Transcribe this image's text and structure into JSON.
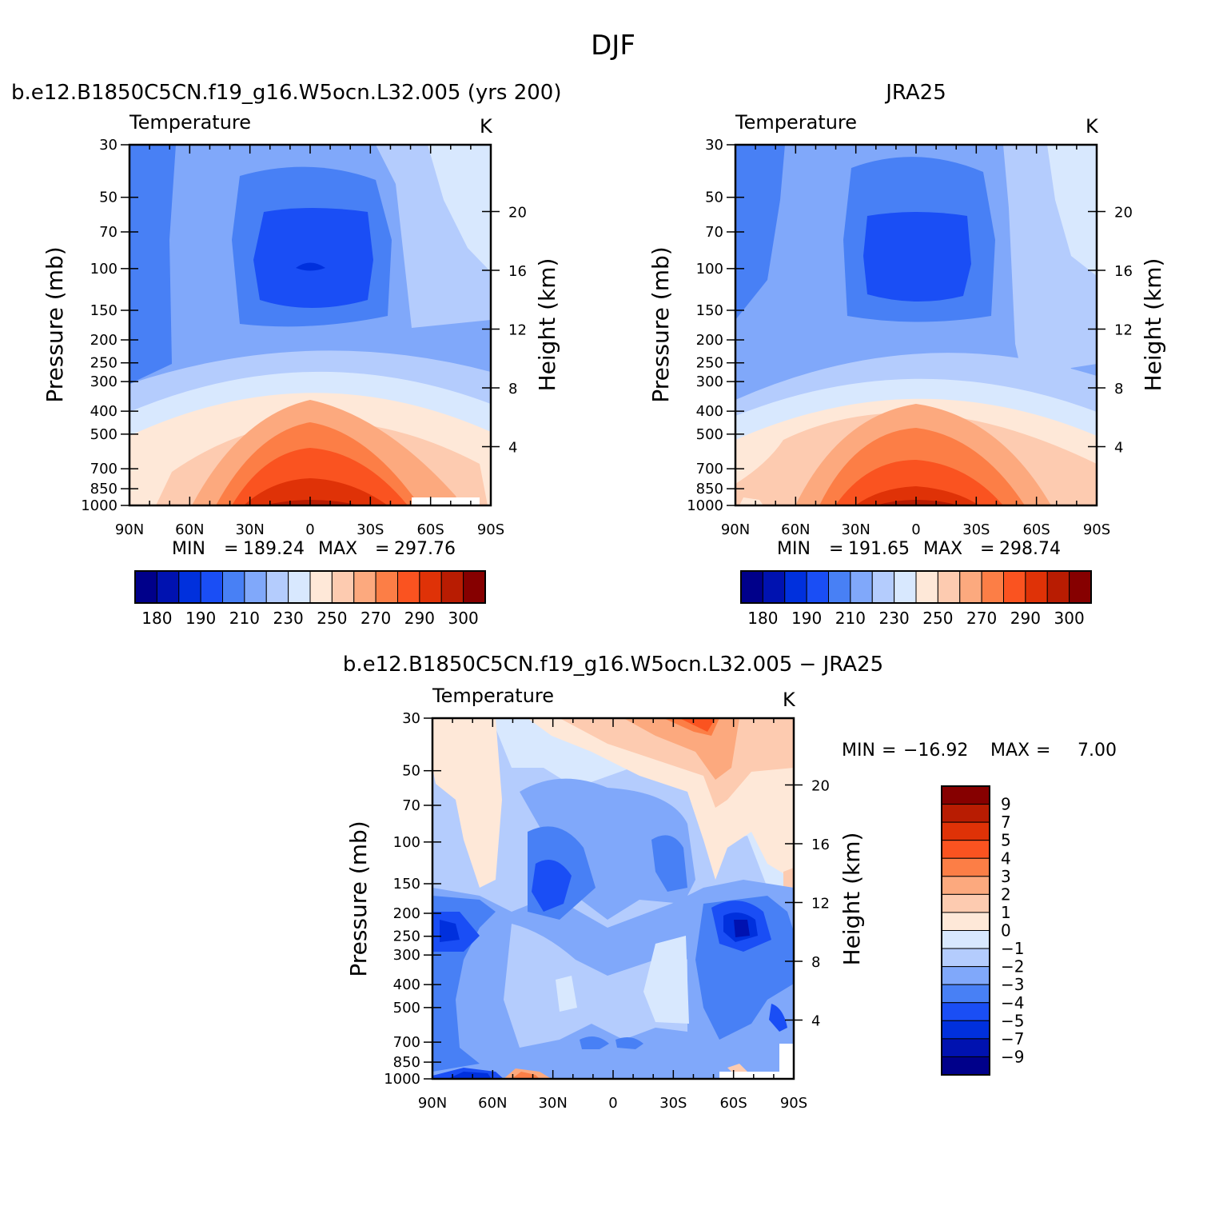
{
  "title": "DJF",
  "chart_data": [
    {
      "type": "contour",
      "panel_title": "b.e12.B1850C5CN.f19_g16.W5ocn.L32.005 (yrs 200)",
      "variable": "Temperature",
      "units": "K",
      "ylabel": "Pressure (mb)",
      "ylabel_right": "Height (km)",
      "x_ticks": [
        "90N",
        "60N",
        "30N",
        "0",
        "30S",
        "60S",
        "90S"
      ],
      "y_ticks": [
        "30",
        "50",
        "70",
        "100",
        "150",
        "200",
        "250",
        "300",
        "400",
        "500",
        "700",
        "850",
        "1000"
      ],
      "height_ticks": [
        "20",
        "16",
        "12",
        "8",
        "4"
      ],
      "min_label": "MIN",
      "min": "189.24",
      "max_label": "MAX",
      "max": "297.76",
      "colorbar_labels": [
        "180",
        "190",
        "210",
        "230",
        "250",
        "270",
        "290",
        "300"
      ]
    },
    {
      "type": "contour",
      "panel_title": "JRA25",
      "variable": "Temperature",
      "units": "K",
      "ylabel": "Pressure (mb)",
      "ylabel_right": "Height (km)",
      "x_ticks": [
        "90N",
        "60N",
        "30N",
        "0",
        "30S",
        "60S",
        "90S"
      ],
      "y_ticks": [
        "30",
        "50",
        "70",
        "100",
        "150",
        "200",
        "250",
        "300",
        "400",
        "500",
        "700",
        "850",
        "1000"
      ],
      "height_ticks": [
        "20",
        "16",
        "12",
        "8",
        "4"
      ],
      "min_label": "MIN",
      "min": "191.65",
      "max_label": "MAX",
      "max": "298.74",
      "colorbar_labels": [
        "180",
        "190",
        "210",
        "230",
        "250",
        "270",
        "290",
        "300"
      ]
    },
    {
      "type": "contour",
      "panel_title": "b.e12.B1850C5CN.f19_g16.W5ocn.L32.005 − JRA25",
      "variable": "Temperature",
      "units": "K",
      "ylabel": "Pressure (mb)",
      "ylabel_right": "Height (km)",
      "x_ticks": [
        "90N",
        "60N",
        "30N",
        "0",
        "30S",
        "60S",
        "90S"
      ],
      "y_ticks": [
        "30",
        "50",
        "70",
        "100",
        "150",
        "200",
        "250",
        "300",
        "400",
        "500",
        "700",
        "850",
        "1000"
      ],
      "height_ticks": [
        "20",
        "16",
        "12",
        "8",
        "4"
      ],
      "min_label": "MIN",
      "min": "−16.92",
      "max_label": "MAX",
      "max": "7.00",
      "colorbar_labels": [
        "9",
        "7",
        "5",
        "4",
        "3",
        "2",
        "1",
        "0",
        "−1",
        "−2",
        "−3",
        "−4",
        "−5",
        "−7",
        "−9"
      ]
    }
  ],
  "colors": {
    "abs_scale": [
      "#00008a",
      "#0012b0",
      "#0030dd",
      "#1a4ef5",
      "#4880f5",
      "#80a8fa",
      "#b4ccfd",
      "#d8e8fe",
      "#fee8d8",
      "#fdcbb0",
      "#fca97e",
      "#fc7e46",
      "#fa5320",
      "#df3207",
      "#b81c02",
      "#860000"
    ],
    "diff_scale": [
      "#860000",
      "#b81c02",
      "#df3207",
      "#fa5320",
      "#fc7e46",
      "#fca97e",
      "#fdcbb0",
      "#fee8d8",
      "#d8e8fe",
      "#b4ccfd",
      "#80a8fa",
      "#4880f5",
      "#1a4ef5",
      "#0030dd",
      "#0012b0",
      "#00008a"
    ]
  }
}
